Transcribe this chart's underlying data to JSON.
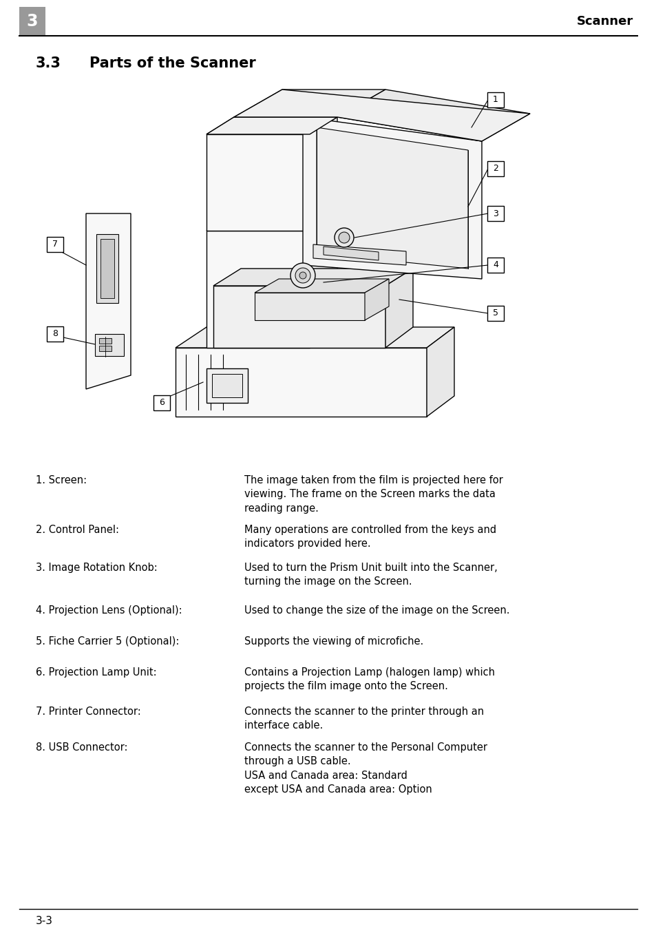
{
  "page_bg": "#ffffff",
  "header_bar_color": "#999999",
  "header_number": "3",
  "header_title": "Scanner",
  "section_number": "3.3",
  "section_title": "Parts of the Scanner",
  "items": [
    {
      "number": "1",
      "label": "Screen:",
      "description": "The image taken from the film is projected here for\nviewing. The frame on the Screen marks the data\nreading range."
    },
    {
      "number": "2",
      "label": "Control Panel:",
      "description": "Many operations are controlled from the keys and\nindicators provided here."
    },
    {
      "number": "3",
      "label": "Image Rotation Knob:",
      "description": "Used to turn the Prism Unit built into the Scanner,\nturning the image on the Screen."
    },
    {
      "number": "4",
      "label": "Projection Lens (Optional):",
      "description": "Used to change the size of the image on the Screen."
    },
    {
      "number": "5",
      "label": "Fiche Carrier 5 (Optional):",
      "description": "Supports the viewing of microfiche."
    },
    {
      "number": "6",
      "label": "Projection Lamp Unit:",
      "description": "Contains a Projection Lamp (halogen lamp) which\nprojects the film image onto the Screen."
    },
    {
      "number": "7",
      "label": "Printer Connector:",
      "description": "Connects the scanner to the printer through an\ninterface cable."
    },
    {
      "number": "8",
      "label": "USB Connector:",
      "description": "Connects the scanner to the Personal Computer\nthrough a USB cable.\nUSA and Canada area: Standard\nexcept USA and Canada area: Option"
    }
  ],
  "footer_page": "3-3",
  "text_color": "#000000",
  "line_color": "#000000"
}
